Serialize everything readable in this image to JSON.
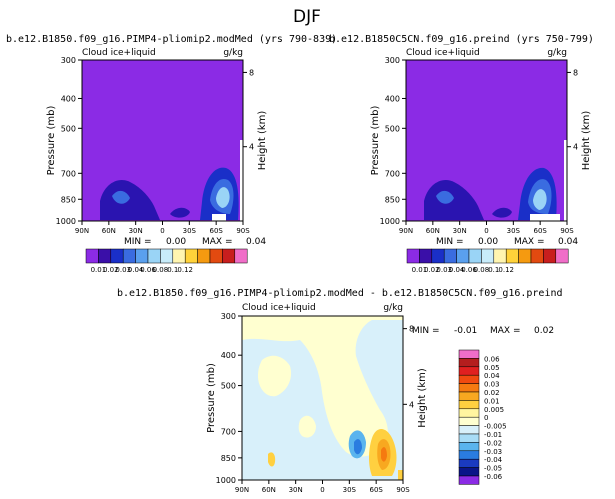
{
  "page_title": "DJF",
  "colors": {
    "background_field": "#8B2BE5",
    "diff_background": "#FFFFD0"
  },
  "chart_data": [
    {
      "type": "contour",
      "title": "b.e12.B1850.f09_g16.PIMP4-pliomip2.modMed (yrs 790-839)",
      "left_label": "Cloud ice+liquid",
      "units": "g/kg",
      "xlabel": "",
      "ylabel": "Pressure (mb)",
      "right_axis_label": "Height (km)",
      "x_ticks": [
        "90N",
        "60N",
        "30N",
        "0",
        "30S",
        "60S",
        "90S"
      ],
      "y_ticks": [
        300,
        400,
        500,
        700,
        850,
        1000
      ],
      "right_ticks": [
        8,
        4
      ],
      "stats": {
        "min_label": "MIN =",
        "min": "0.00",
        "max_label": "MAX =",
        "max": "0.04"
      }
    },
    {
      "type": "contour",
      "title": "b.e12.B1850C5CN.f09_g16.preind (yrs 750-799)",
      "left_label": "Cloud ice+liquid",
      "units": "g/kg",
      "xlabel": "",
      "ylabel": "Pressure (mb)",
      "right_axis_label": "Height (km)",
      "x_ticks": [
        "90N",
        "60N",
        "30N",
        "0",
        "30S",
        "60S",
        "90S"
      ],
      "y_ticks": [
        300,
        400,
        500,
        700,
        850,
        1000
      ],
      "right_ticks": [
        8,
        4
      ],
      "stats": {
        "min_label": "MIN =",
        "min": "0.00",
        "max_label": "MAX =",
        "max": "0.04"
      }
    },
    {
      "type": "contour",
      "title": "b.e12.B1850.f09_g16.PIMP4-pliomip2.modMed - b.e12.B1850C5CN.f09_g16.preind",
      "left_label": "Cloud ice+liquid",
      "units": "g/kg",
      "xlabel": "",
      "ylabel": "Pressure (mb)",
      "right_axis_label": "Height (km)",
      "x_ticks": [
        "90N",
        "60N",
        "30N",
        "0",
        "30S",
        "60S",
        "90S"
      ],
      "y_ticks": [
        300,
        400,
        500,
        700,
        850,
        1000
      ],
      "right_ticks": [
        8,
        4
      ],
      "stats": {
        "min_label": "MIN =",
        "min": "-0.01",
        "max_label": "MAX =",
        "max": "0.02"
      }
    }
  ],
  "abs_colorbar": {
    "labels": [
      "0.01",
      "0.02",
      "0.03",
      "0.04",
      "0.06",
      "0.08",
      "0.1",
      "0.12"
    ],
    "colors": [
      "#8B2BE5",
      "#3A0FA8",
      "#1A2FC8",
      "#3A6CE0",
      "#5AA0EE",
      "#9AD4F6",
      "#C8ECFA",
      "#FFF5B0",
      "#FFD23A",
      "#F59A10",
      "#E24A10",
      "#C81E1E",
      "#F06EC8"
    ]
  },
  "diff_colorbar": {
    "labels": [
      "0.06",
      "0.05",
      "0.04",
      "0.03",
      "0.02",
      "0.01",
      "0.005",
      "0",
      "-0.005",
      "-0.01",
      "-0.02",
      "-0.03",
      "-0.04",
      "-0.05",
      "-0.06"
    ],
    "colors": [
      "#F06EC8",
      "#B41E1E",
      "#E02020",
      "#F04A10",
      "#F57A10",
      "#F8A820",
      "#FFD040",
      "#FFF5A0",
      "#FFFFD0",
      "#D8F0FA",
      "#A8DCF6",
      "#5AB4EE",
      "#2A7CE0",
      "#1A3AC0",
      "#0A1488",
      "#8B2BE5"
    ]
  }
}
